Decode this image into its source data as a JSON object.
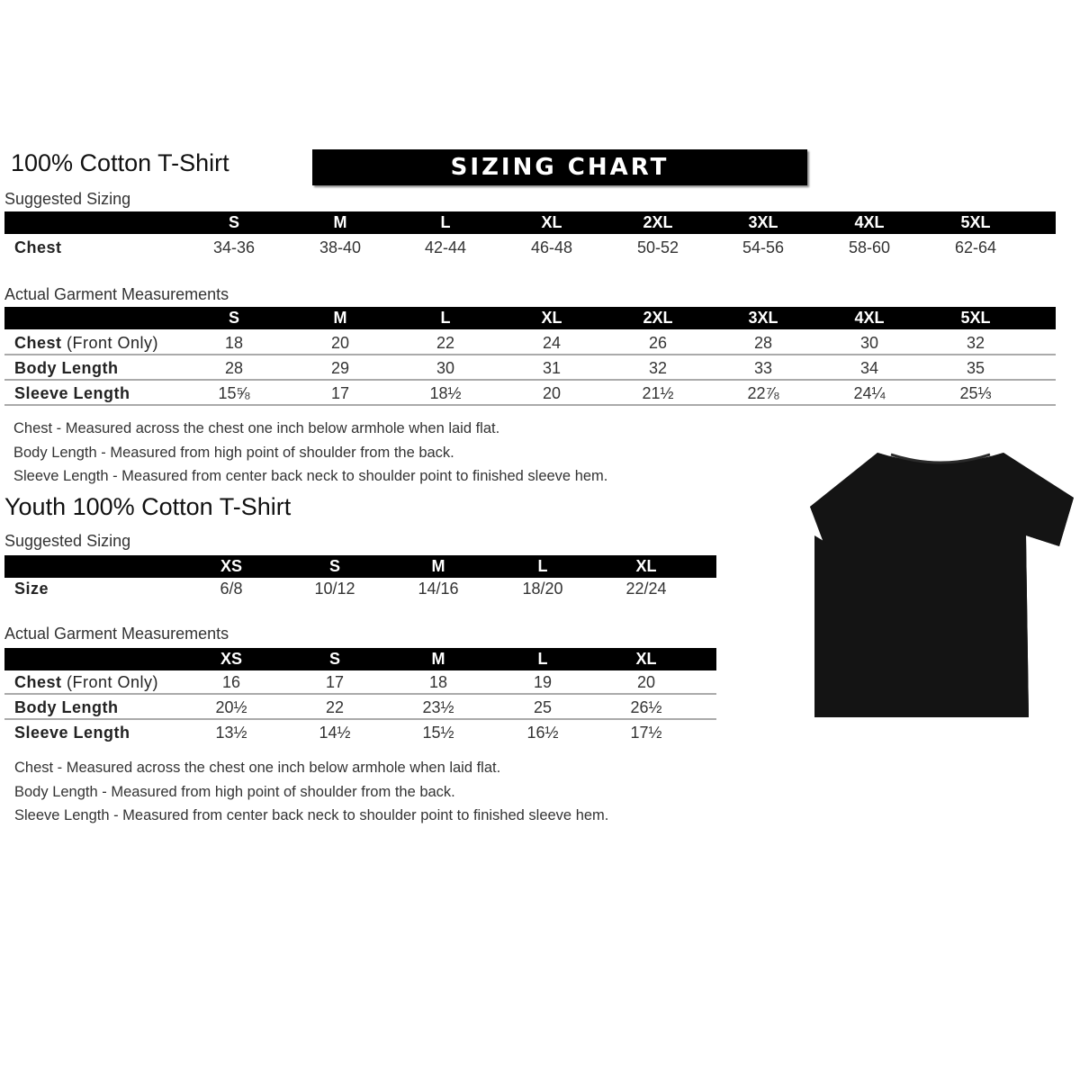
{
  "banner": "SIZING CHART",
  "adult": {
    "title": "100% Cotton T-Shirt",
    "suggested_label": "Suggested Sizing",
    "sizes": [
      "S",
      "M",
      "L",
      "XL",
      "2XL",
      "3XL",
      "4XL",
      "5XL"
    ],
    "suggested_rows": [
      {
        "label": "Chest",
        "values": [
          "34-36",
          "38-40",
          "42-44",
          "46-48",
          "50-52",
          "54-56",
          "58-60",
          "62-64"
        ]
      }
    ],
    "actual_label": "Actual Garment Measurements",
    "actual_rows": [
      {
        "label": "Chest",
        "label_note": "(Front Only)",
        "values": [
          "18",
          "20",
          "22",
          "24",
          "26",
          "28",
          "30",
          "32"
        ]
      },
      {
        "label": "Body Length",
        "values": [
          "28",
          "29",
          "30",
          "31",
          "32",
          "33",
          "34",
          "35"
        ]
      },
      {
        "label": "Sleeve Length",
        "values": [
          "15⅝",
          "17",
          "18½",
          "20",
          "21½",
          "22⅞",
          "24¼",
          "25⅓"
        ]
      }
    ],
    "notes": [
      "Chest - Measured across the chest one inch below armhole when laid flat.",
      "Body Length - Measured from high point of shoulder from the back.",
      "Sleeve Length - Measured from center back neck to shoulder point to finished sleeve hem."
    ]
  },
  "youth": {
    "title": "Youth 100% Cotton T-Shirt",
    "suggested_label": "Suggested Sizing",
    "sizes": [
      "XS",
      "S",
      "M",
      "L",
      "XL"
    ],
    "suggested_rows": [
      {
        "label": "Size",
        "values": [
          "6/8",
          "10/12",
          "14/16",
          "18/20",
          "22/24"
        ]
      }
    ],
    "actual_label": "Actual Garment Measurements",
    "actual_rows": [
      {
        "label": "Chest",
        "label_note": "(Front Only)",
        "values": [
          "16",
          "17",
          "18",
          "19",
          "20"
        ]
      },
      {
        "label": "Body Length",
        "values": [
          "20½",
          "22",
          "23½",
          "25",
          "26½"
        ]
      },
      {
        "label": "Sleeve Length",
        "values": [
          "13½",
          "14½",
          "15½",
          "16½",
          "17½"
        ]
      }
    ],
    "notes": [
      "Chest - Measured across the chest one inch below armhole when laid flat.",
      "Body Length - Measured from high point of shoulder from the back.",
      "Sleeve Length - Measured from center back neck to shoulder point to finished sleeve hem."
    ]
  },
  "product_image": {
    "icon": "black-tshirt",
    "color": "#141414"
  }
}
